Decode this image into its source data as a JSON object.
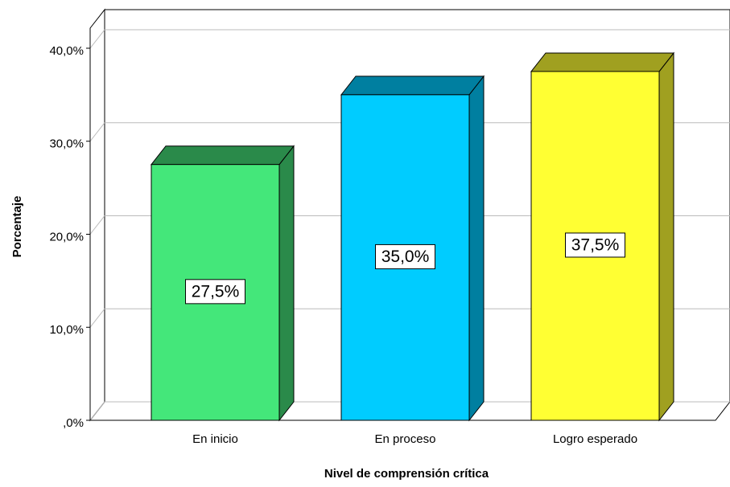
{
  "chart_data": {
    "type": "bar3d",
    "x_label": "Nivel de comprensión crítica",
    "y_label": "Porcentaje",
    "categories": [
      "En inicio",
      "En proceso",
      "Logro esperado"
    ],
    "values": [
      27.5,
      35.0,
      37.5
    ],
    "value_labels": [
      "27,5%",
      "35,0%",
      "37,5%"
    ],
    "colors": [
      "#44e77a",
      "#00ccff",
      "#ffff33"
    ],
    "side_colors": [
      "#2a8a4a",
      "#007fa0",
      "#a0a020"
    ],
    "ylim": [
      0,
      40
    ],
    "yticks": [
      {
        "value": 0,
        "label": ",0%"
      },
      {
        "value": 10,
        "label": "10,0%"
      },
      {
        "value": 20,
        "label": "20,0%"
      },
      {
        "value": 30,
        "label": "30,0%"
      },
      {
        "value": 40,
        "label": "40,0%"
      }
    ],
    "grid": true
  }
}
